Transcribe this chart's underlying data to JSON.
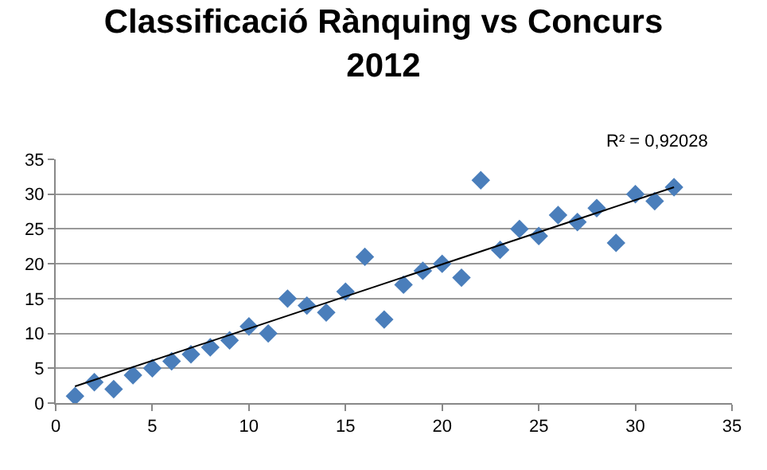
{
  "chart_data": {
    "type": "scatter",
    "title": "Classificació Rànquing vs Concurs\n2012",
    "annotations": [
      "R² = 0,92028"
    ],
    "x": [
      1,
      2,
      3,
      4,
      5,
      6,
      7,
      8,
      9,
      10,
      11,
      12,
      13,
      14,
      15,
      16,
      17,
      18,
      19,
      20,
      21,
      22,
      23,
      24,
      25,
      26,
      27,
      28,
      29,
      30,
      31,
      32
    ],
    "series": [
      {
        "color": "#4a7ebb",
        "values": [
          1,
          3,
          2,
          4,
          5,
          6,
          7,
          8,
          9,
          11,
          10,
          15,
          14,
          13,
          16,
          21,
          12,
          17,
          19,
          20,
          18,
          32,
          22,
          25,
          24,
          27,
          26,
          28,
          23,
          30,
          29,
          31
        ]
      },
      {
        "type": "line",
        "marker": "none",
        "color": "#000000",
        "x": [
          1,
          32
        ],
        "values": [
          2.4,
          31.0
        ]
      }
    ],
    "marker": "diamond",
    "xlim": [
      0,
      35
    ],
    "xticks": [
      0,
      5,
      10,
      15,
      20,
      25,
      30,
      35
    ],
    "ylim": [
      0,
      35
    ],
    "yticks": [
      0,
      5,
      10,
      15,
      20,
      25,
      30,
      35
    ],
    "grid": "y",
    "legend": false
  }
}
